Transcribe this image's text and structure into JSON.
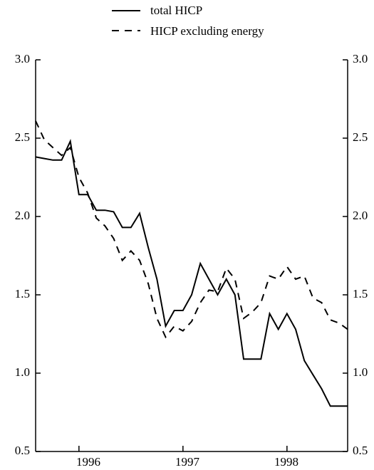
{
  "chart_data": {
    "type": "line",
    "title": "",
    "xlabel": "",
    "ylabel": "",
    "ylim": [
      0.5,
      3.0
    ],
    "y_ticks": [
      "0.5",
      "1.0",
      "1.5",
      "2.0",
      "2.5",
      "3.0"
    ],
    "x_labels": [
      "1996",
      "1997",
      "1998"
    ],
    "xlim": [
      "1995-08",
      "1998-08"
    ],
    "grid": false,
    "legend_position": "top-center",
    "series": [
      {
        "name": "total HICP",
        "style": "solid",
        "color": "#000000",
        "x": [
          "1995-08",
          "1995-09",
          "1995-10",
          "1995-11",
          "1995-12",
          "1996-01",
          "1996-02",
          "1996-03",
          "1996-04",
          "1996-05",
          "1996-06",
          "1996-07",
          "1996-08",
          "1996-09",
          "1996-10",
          "1996-11",
          "1996-12",
          "1997-01",
          "1997-02",
          "1997-03",
          "1997-04",
          "1997-05",
          "1997-06",
          "1997-07",
          "1997-08",
          "1997-09",
          "1997-10",
          "1997-11",
          "1997-12",
          "1998-01",
          "1998-02",
          "1998-03",
          "1998-04",
          "1998-05",
          "1998-06",
          "1998-07",
          "1998-08"
        ],
        "values": [
          2.38,
          2.37,
          2.36,
          2.36,
          2.48,
          2.14,
          2.14,
          2.04,
          2.04,
          2.03,
          1.93,
          1.93,
          2.02,
          1.8,
          1.6,
          1.3,
          1.4,
          1.4,
          1.5,
          1.7,
          1.6,
          1.5,
          1.6,
          1.5,
          1.09,
          1.09,
          1.09,
          1.38,
          1.28,
          1.38,
          1.28,
          1.08,
          0.99,
          0.9,
          0.79,
          0.79,
          0.79
        ]
      },
      {
        "name": "HICP excluding energy",
        "style": "dashed",
        "color": "#000000",
        "x": [
          "1995-08",
          "1995-09",
          "1995-10",
          "1995-11",
          "1995-12",
          "1996-01",
          "1996-02",
          "1996-03",
          "1996-04",
          "1996-05",
          "1996-06",
          "1996-07",
          "1996-08",
          "1996-09",
          "1996-10",
          "1996-11",
          "1996-12",
          "1997-01",
          "1997-02",
          "1997-03",
          "1997-04",
          "1997-05",
          "1997-06",
          "1997-07",
          "1997-08",
          "1997-09",
          "1997-10",
          "1997-11",
          "1997-12",
          "1998-01",
          "1998-02",
          "1998-03",
          "1998-04",
          "1998-05",
          "1998-06",
          "1998-07",
          "1998-08"
        ],
        "values": [
          2.61,
          2.49,
          2.44,
          2.39,
          2.44,
          2.25,
          2.15,
          1.99,
          1.94,
          1.86,
          1.72,
          1.78,
          1.72,
          1.57,
          1.35,
          1.23,
          1.3,
          1.27,
          1.33,
          1.45,
          1.53,
          1.52,
          1.67,
          1.6,
          1.35,
          1.39,
          1.45,
          1.62,
          1.6,
          1.68,
          1.6,
          1.62,
          1.48,
          1.45,
          1.34,
          1.32,
          1.28
        ]
      }
    ]
  }
}
